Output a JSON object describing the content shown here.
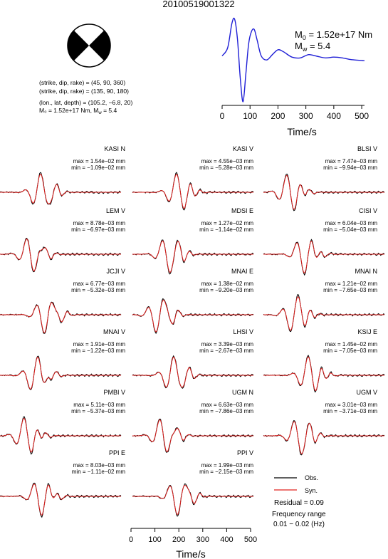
{
  "page": {
    "title": "20100519001322"
  },
  "focal": {
    "params1": "(strike, dip, rake) = (45, 90, 360)",
    "params2": "(strike, dip, rake) = (135, 90, 180)",
    "loc": "(lon., lat, depth) = (105.2, −6.8, 20)",
    "moment": "M₀ = 1.52e+17 Nm, M",
    "moment_sub": "w",
    "moment_tail": " = 5.4"
  },
  "stf": {
    "m0_prefix": "M",
    "m0_sub": "0",
    "m0_value": " = 1.52e+17 Nm",
    "mw_prefix": "M",
    "mw_sub": "w",
    "mw_value": " = 5.4",
    "xlabel": "Time/s",
    "xticks": [
      "0",
      "100",
      "200",
      "300",
      "400",
      "500"
    ]
  },
  "bottom_axis": {
    "xlabel": "Time/s",
    "xticks": [
      "0",
      "100",
      "200",
      "300",
      "400",
      "500"
    ]
  },
  "legend": {
    "obs": "Obs.",
    "syn": "Syn.",
    "residual": "Residual = 0.09",
    "freq1": "Frequency range",
    "freq2": "0.01 − 0.02 (Hz)"
  },
  "chart_data": {
    "type": "line",
    "title": "20100519001322",
    "source_time_function": {
      "x": [
        0,
        20,
        35,
        45,
        55,
        65,
        75,
        85,
        95,
        105,
        115,
        125,
        140,
        160,
        180,
        200,
        220,
        250,
        280,
        310,
        340,
        370,
        400,
        430,
        460,
        490,
        510
      ],
      "y": [
        0.15,
        0.35,
        0.95,
        1.05,
        0.55,
        -0.4,
        -0.98,
        -0.3,
        0.45,
        0.75,
        0.8,
        0.55,
        0.15,
        0.05,
        0.18,
        0.3,
        0.25,
        0.12,
        0.1,
        0.18,
        0.14,
        0.1,
        0.12,
        0.1,
        0.06,
        0.04,
        0.03
      ],
      "xlim": [
        0,
        510
      ],
      "xlabel": "Time/s"
    },
    "stations": [
      {
        "name": "KASI N",
        "max": "max = 1.54e−02 mm",
        "min": "min = −1.09e−02 mm"
      },
      {
        "name": "KASI V",
        "max": "max = 4.55e−03 mm",
        "min": "min = −5.28e−03 mm"
      },
      {
        "name": "BLSI V",
        "max": "max = 7.47e−03 mm",
        "min": "min = −9.94e−03 mm"
      },
      {
        "name": "LEM V",
        "max": "max = 8.78e−03 mm",
        "min": "min = −6.97e−03 mm"
      },
      {
        "name": "MDSI E",
        "max": "max = 1.27e−02 mm",
        "min": "min = −1.14e−02 mm"
      },
      {
        "name": "CISI V",
        "max": "max = 6.04e−03 mm",
        "min": "min = −5.04e−03 mm"
      },
      {
        "name": "JCJI V",
        "max": "max = 6.77e−03 mm",
        "min": "min = −5.32e−03 mm"
      },
      {
        "name": "MNAI E",
        "max": "max = 1.38e−02 mm",
        "min": "min = −9.20e−03 mm"
      },
      {
        "name": "MNAI N",
        "max": "max = 1.21e−02 mm",
        "min": "min = −7.65e−03 mm"
      },
      {
        "name": "MNAI V",
        "max": "max = 1.91e−03 mm",
        "min": "min = −1.22e−03 mm"
      },
      {
        "name": "LHSI V",
        "max": "max = 3.39e−03 mm",
        "min": "min = −2.67e−03 mm"
      },
      {
        "name": "KSIJ E",
        "max": "max = 1.45e−02 mm",
        "min": "min = −7.05e−03 mm"
      },
      {
        "name": "PMBI V",
        "max": "max = 5.11e−03 mm",
        "min": "min = −5.37e−03 mm"
      },
      {
        "name": "UGM N",
        "max": "max = 6.63e−03 mm",
        "min": "min = −7.86e−03 mm"
      },
      {
        "name": "UGM V",
        "max": "max = 3.01e−03 mm",
        "min": "min = −3.71e−03 mm"
      },
      {
        "name": "PPI E",
        "max": "max = 8.03e−03 mm",
        "min": "min = −1.11e−02 mm"
      },
      {
        "name": "PPI V",
        "max": "max = 1.99e−03 mm",
        "min": "min = −2.15e−03 mm"
      }
    ],
    "series": [
      {
        "name": "Obs.",
        "color": "#000000"
      },
      {
        "name": "Syn.",
        "color": "#e0201e"
      }
    ],
    "xlim": [
      0,
      510
    ],
    "xlabel": "Time/s",
    "residual": 0.09,
    "frequency_range_hz": [
      0.01,
      0.02
    ]
  }
}
